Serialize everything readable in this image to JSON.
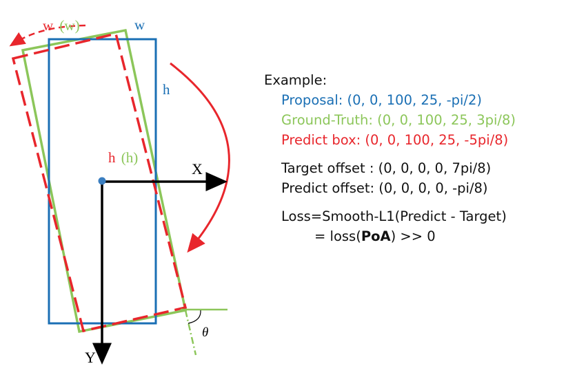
{
  "colors": {
    "proposal": "#1a6fb4",
    "ground_truth": "#8cc65a",
    "predict": "#e8262c",
    "text": "#111111"
  },
  "diagram": {
    "label_w_red": "w",
    "label_w_green": "(w)",
    "label_w_blue": "w",
    "label_h_blue": "h",
    "label_h_red": "h",
    "label_h_green": "(h)",
    "axis_x": "X",
    "axis_y": "Y",
    "angle_symbol": "θ"
  },
  "example": {
    "heading": "Example:",
    "proposal": "Proposal: (0, 0, 100, 25, -pi/2)",
    "ground_truth": "Ground-Truth: (0, 0, 100, 25, 3pi/8)",
    "predict_box": "Predict box: (0, 0, 100, 25, -5pi/8)",
    "target_offset": "Target offset : (0, 0, 0, 0, 7pi/8)",
    "predict_offset": "Predict offset: (0, 0, 0, 0, -pi/8)",
    "loss_line1": "Loss=Smooth-L1(Predict - Target)",
    "loss_line2_prefix": "= loss(",
    "loss_line2_bold": "PoA",
    "loss_line2_suffix": ") >> 0"
  }
}
